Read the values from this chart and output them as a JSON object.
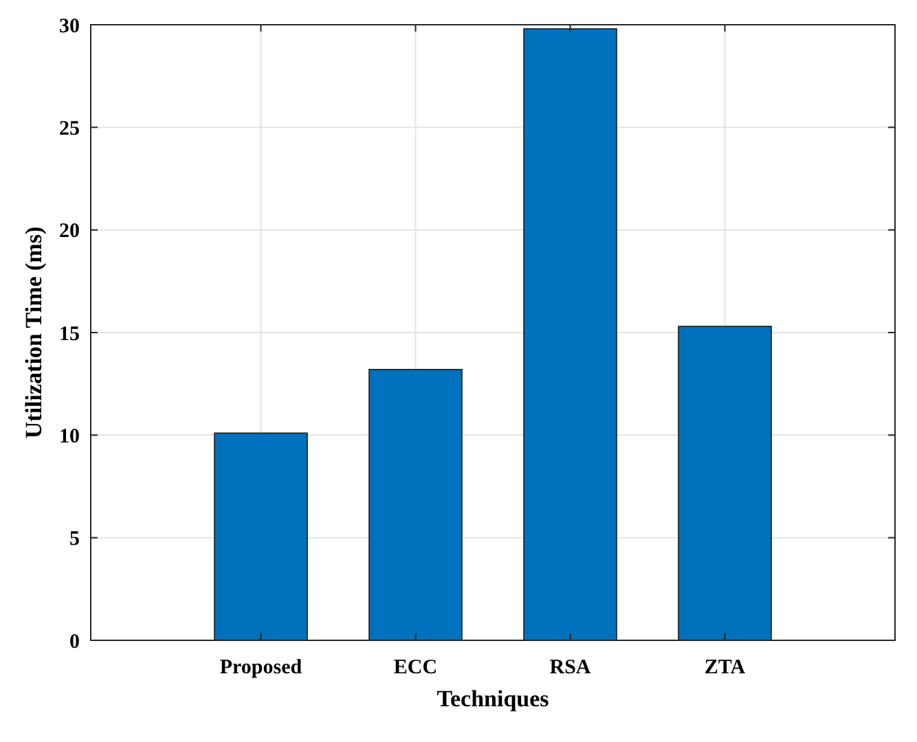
{
  "chart_data": {
    "type": "bar",
    "xlabel": "Techniques",
    "ylabel": "Utilization Time (ms)",
    "categories": [
      "Proposed",
      "ECC",
      "RSA",
      "ZTA"
    ],
    "values": [
      10.1,
      13.2,
      29.8,
      15.3
    ],
    "color": "#0072bd",
    "ylim": [
      0,
      30
    ],
    "yticks": [
      0,
      5,
      10,
      15,
      20,
      25,
      30
    ],
    "grid": true
  }
}
